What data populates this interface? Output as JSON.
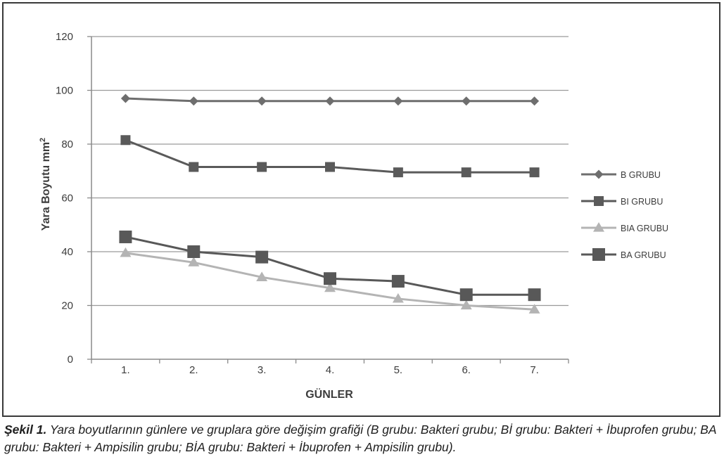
{
  "chart_data": {
    "type": "line",
    "title": "",
    "xlabel": "GÜNLER",
    "ylabel": "Yara Boyutu mm",
    "ylabel_superscript": "2",
    "ylim": [
      0,
      120
    ],
    "yticks": [
      0,
      20,
      40,
      60,
      80,
      100,
      120
    ],
    "grid": "horizontal",
    "legend_position": "right",
    "categories": [
      "1.",
      "2.",
      "3.",
      "4.",
      "5.",
      "6.",
      "7."
    ],
    "series": [
      {
        "name": "B GRUBU",
        "marker": "diamond",
        "color": "#6e6e6e",
        "values": [
          97,
          96,
          96,
          96,
          96,
          96,
          96
        ]
      },
      {
        "name": "BI GRUBU",
        "marker": "square",
        "color": "#5a5a5a",
        "values": [
          81.5,
          71.5,
          71.5,
          71.5,
          69.5,
          69.5,
          69.5
        ]
      },
      {
        "name": "BIA GRUBU",
        "marker": "triangle",
        "color": "#b4b4b4",
        "values": [
          39.5,
          36,
          30.5,
          26.5,
          22.5,
          20,
          18.5
        ]
      },
      {
        "name": "BA GRUBU",
        "marker": "square-large",
        "color": "#585858",
        "values": [
          45.5,
          40,
          38,
          30,
          29,
          24,
          24
        ]
      }
    ]
  },
  "caption": {
    "label": "Şekil 1.",
    "text": " Yara boyutlarının günlere ve gruplara göre değişim grafiği (B grubu: Bakteri grubu; Bİ grubu: Bakteri + İbuprofen grubu; BA grubu: Bakteri + Ampisilin grubu; BİA grubu: Bakteri + İbuprofen + Ampisilin grubu)."
  }
}
